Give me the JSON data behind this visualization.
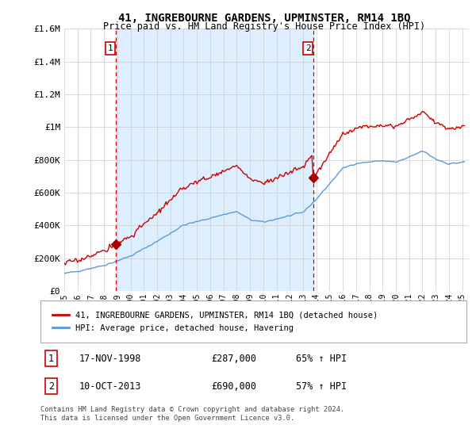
{
  "title": "41, INGREBOURNE GARDENS, UPMINSTER, RM14 1BQ",
  "subtitle": "Price paid vs. HM Land Registry's House Price Index (HPI)",
  "ylim": [
    0,
    1600000
  ],
  "yticks": [
    0,
    200000,
    400000,
    600000,
    800000,
    1000000,
    1200000,
    1400000,
    1600000
  ],
  "ytick_labels": [
    "£0",
    "£200K",
    "£400K",
    "£600K",
    "£800K",
    "£1M",
    "£1.2M",
    "£1.4M",
    "£1.6M"
  ],
  "xlim_start": 1995.3,
  "xlim_end": 2025.5,
  "xtick_years": [
    1995,
    1996,
    1997,
    1998,
    1999,
    2000,
    2001,
    2002,
    2003,
    2004,
    2005,
    2006,
    2007,
    2008,
    2009,
    2010,
    2011,
    2012,
    2013,
    2014,
    2015,
    2016,
    2017,
    2018,
    2019,
    2020,
    2021,
    2022,
    2023,
    2024,
    2025
  ],
  "sale1_x": 1998.88,
  "sale1_y": 287000,
  "sale1_label": "1",
  "sale2_x": 2013.78,
  "sale2_y": 690000,
  "sale2_label": "2",
  "red_line_color": "#cc0000",
  "blue_line_color": "#5b9bd5",
  "dashed_line_color": "#cc0000",
  "marker_color": "#aa0000",
  "fill_color": "#ddeeff",
  "legend_line1": "41, INGREBOURNE GARDENS, UPMINSTER, RM14 1BQ (detached house)",
  "legend_line2": "HPI: Average price, detached house, Havering",
  "table_row1": [
    "1",
    "17-NOV-1998",
    "£287,000",
    "65% ↑ HPI"
  ],
  "table_row2": [
    "2",
    "10-OCT-2013",
    "£690,000",
    "57% ↑ HPI"
  ],
  "footnote": "Contains HM Land Registry data © Crown copyright and database right 2024.\nThis data is licensed under the Open Government Licence v3.0.",
  "background_color": "#ffffff",
  "grid_color": "#cccccc"
}
